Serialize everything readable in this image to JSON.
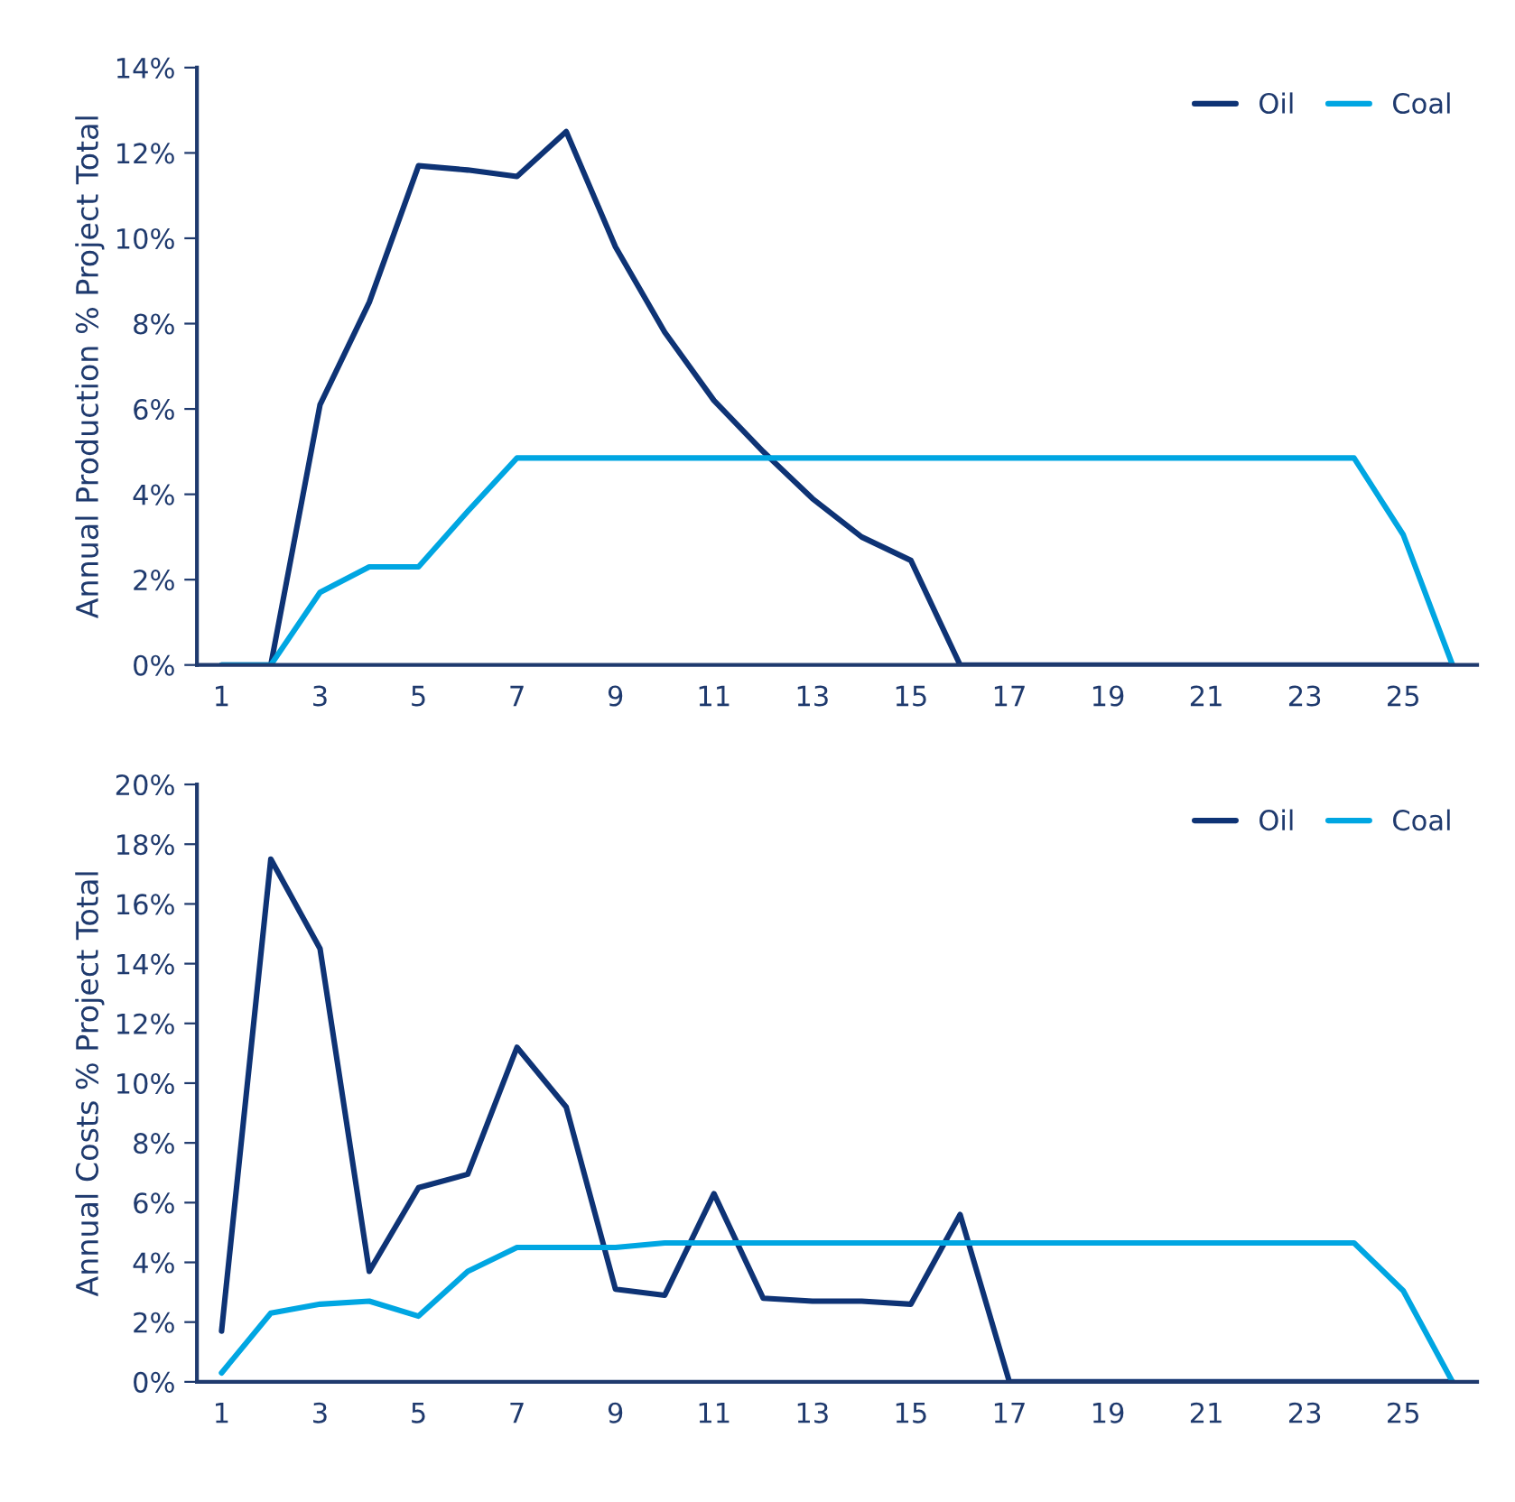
{
  "chart_data": [
    {
      "type": "line",
      "ylabel": "Annual Production % Project Total",
      "x": [
        1,
        2,
        3,
        4,
        5,
        6,
        7,
        8,
        9,
        10,
        11,
        12,
        13,
        14,
        15,
        16,
        17,
        18,
        19,
        20,
        21,
        22,
        23,
        24,
        25,
        26
      ],
      "series": [
        {
          "name": "Oil",
          "color": "#0e3375",
          "values": [
            0,
            0,
            6.1,
            8.5,
            11.7,
            11.6,
            11.45,
            12.5,
            9.8,
            7.8,
            6.2,
            5.0,
            3.9,
            3.0,
            2.45,
            0,
            0,
            0,
            0,
            0,
            0,
            0,
            0,
            0,
            0,
            0
          ]
        },
        {
          "name": "Coal",
          "color": "#00a6e2",
          "values": [
            0,
            0,
            1.7,
            2.3,
            2.3,
            3.6,
            4.85,
            4.85,
            4.85,
            4.85,
            4.85,
            4.85,
            4.85,
            4.85,
            4.85,
            4.85,
            4.85,
            4.85,
            4.85,
            4.85,
            4.85,
            4.85,
            4.85,
            4.85,
            3.05,
            0
          ]
        }
      ],
      "xlim": [
        0.5,
        26.5
      ],
      "xticks": [
        1,
        3,
        5,
        7,
        9,
        11,
        13,
        15,
        17,
        19,
        21,
        23,
        25
      ],
      "ylim": [
        0,
        14
      ],
      "yticks": [
        {
          "value": 0,
          "label": "0%"
        },
        {
          "value": 2,
          "label": "2%"
        },
        {
          "value": 4,
          "label": "4%"
        },
        {
          "value": 6,
          "label": "6%"
        },
        {
          "value": 8,
          "label": "8%"
        },
        {
          "value": 10,
          "label": "10%"
        },
        {
          "value": 12,
          "label": "12%"
        },
        {
          "value": 14,
          "label": "14%"
        }
      ],
      "grid": false,
      "legend": "top right",
      "marker": "none",
      "line_style": "solid"
    },
    {
      "type": "line",
      "ylabel": "Annual Costs % Project Total",
      "x": [
        1,
        2,
        3,
        4,
        5,
        6,
        7,
        8,
        9,
        10,
        11,
        12,
        13,
        14,
        15,
        16,
        17,
        18,
        19,
        20,
        21,
        22,
        23,
        24,
        25,
        26
      ],
      "series": [
        {
          "name": "Oil",
          "color": "#0e3375",
          "values": [
            1.7,
            17.5,
            14.5,
            3.7,
            6.5,
            6.95,
            11.2,
            9.2,
            3.1,
            2.9,
            6.3,
            2.8,
            2.7,
            2.7,
            2.6,
            5.6,
            0,
            0,
            0,
            0,
            0,
            0,
            0,
            0,
            0,
            0
          ]
        },
        {
          "name": "Coal",
          "color": "#00a6e2",
          "values": [
            0.3,
            2.3,
            2.6,
            2.7,
            2.2,
            3.7,
            4.5,
            4.5,
            4.5,
            4.65,
            4.65,
            4.65,
            4.65,
            4.65,
            4.65,
            4.65,
            4.65,
            4.65,
            4.65,
            4.65,
            4.65,
            4.65,
            4.65,
            4.65,
            3.05,
            0
          ]
        }
      ],
      "xlim": [
        0.5,
        26.5
      ],
      "xticks": [
        1,
        3,
        5,
        7,
        9,
        11,
        13,
        15,
        17,
        19,
        21,
        23,
        25
      ],
      "ylim": [
        0,
        20
      ],
      "yticks": [
        {
          "value": 0,
          "label": "0%"
        },
        {
          "value": 2,
          "label": "2%"
        },
        {
          "value": 4,
          "label": "4%"
        },
        {
          "value": 6,
          "label": "6%"
        },
        {
          "value": 8,
          "label": "8%"
        },
        {
          "value": 10,
          "label": "10%"
        },
        {
          "value": 12,
          "label": "12%"
        },
        {
          "value": 14,
          "label": "14%"
        },
        {
          "value": 16,
          "label": "16%"
        },
        {
          "value": 18,
          "label": "18%"
        },
        {
          "value": 20,
          "label": "20%"
        }
      ],
      "grid": false,
      "legend": "top right",
      "marker": "none",
      "line_style": "solid"
    }
  ]
}
